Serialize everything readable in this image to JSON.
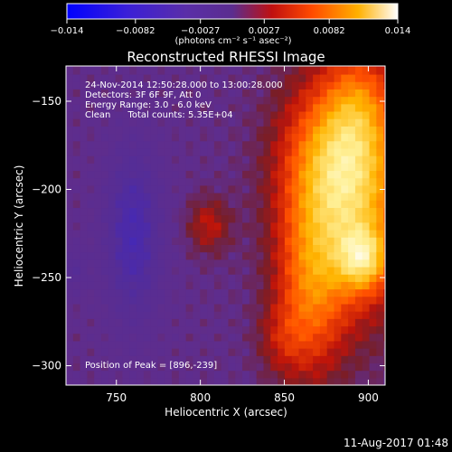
{
  "colorbar": {
    "tick_labels": [
      "-0.014",
      "-0.0082",
      "-0.0027",
      "0.0027",
      "0.0082",
      "0.014"
    ],
    "unit_label": "(photons cm⁻² s⁻¹ asec⁻²)",
    "range": [
      -0.014,
      0.014
    ]
  },
  "chart_data": {
    "type": "heatmap",
    "title": "Reconstructed RHESSI Image",
    "xlabel": "Heliocentric X (arcsec)",
    "ylabel": "Heliocentric Y (arcsec)",
    "xlim": [
      720,
      910
    ],
    "ylim": [
      -311,
      -130
    ],
    "x_ticks": [
      750,
      800,
      850,
      900
    ],
    "y_ticks": [
      -150,
      -200,
      -250,
      -300
    ],
    "x_tick_labels": [
      "750",
      "800",
      "850",
      "900"
    ],
    "y_tick_labels": [
      "−150",
      "−200",
      "−250",
      "−300"
    ],
    "peak": [
      896,
      -239
    ],
    "info_lines": [
      "24-Nov-2014 12:50:28.000 to 13:00:28.000",
      "Detectors: 3F 6F 9F, Att 0",
      "Energy Range: 3.0 - 6.0 keV",
      "Clean      Total counts: 5.35E+04"
    ],
    "peak_label": "Position of Peak = [896,-239]"
  },
  "footer": {
    "date": "11-Aug-2017 01:48"
  }
}
